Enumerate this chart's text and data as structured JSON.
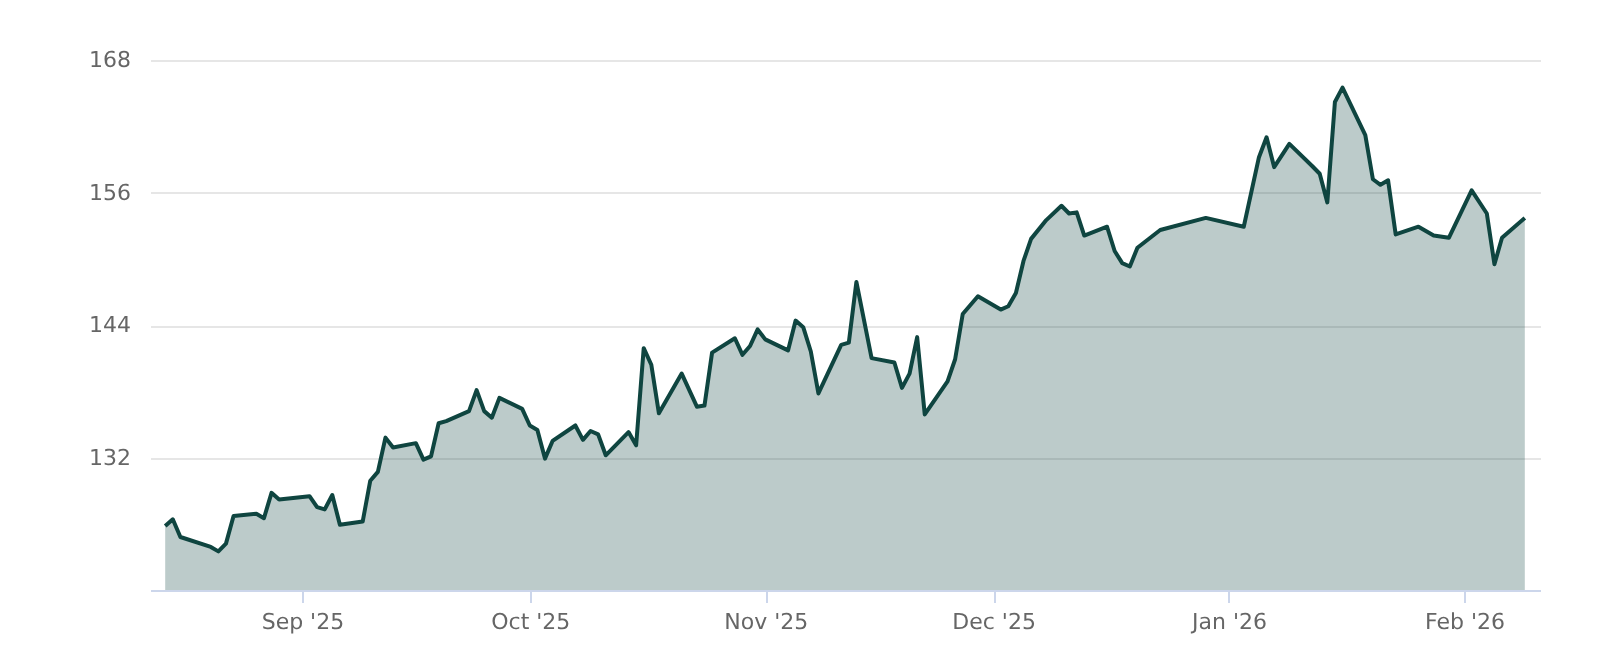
{
  "chart_data": {
    "type": "area",
    "x": [
      "2025-08-14",
      "2025-08-15",
      "2025-08-16",
      "2025-08-20",
      "2025-08-21",
      "2025-08-22",
      "2025-08-23",
      "2025-08-26",
      "2025-08-27",
      "2025-08-28",
      "2025-08-29",
      "2025-09-02",
      "2025-09-03",
      "2025-09-04",
      "2025-09-05",
      "2025-09-06",
      "2025-09-09",
      "2025-09-10",
      "2025-09-11",
      "2025-09-12",
      "2025-09-13",
      "2025-09-16",
      "2025-09-17",
      "2025-09-18",
      "2025-09-19",
      "2025-09-20",
      "2025-09-23",
      "2025-09-24",
      "2025-09-25",
      "2025-09-26",
      "2025-09-27",
      "2025-09-30",
      "2025-10-01",
      "2025-10-02",
      "2025-10-03",
      "2025-10-04",
      "2025-10-07",
      "2025-10-08",
      "2025-10-09",
      "2025-10-10",
      "2025-10-11",
      "2025-10-14",
      "2025-10-15",
      "2025-10-16",
      "2025-10-17",
      "2025-10-18",
      "2025-10-21",
      "2025-10-23",
      "2025-10-24",
      "2025-10-25",
      "2025-10-28",
      "2025-10-29",
      "2025-10-30",
      "2025-10-31",
      "2025-11-01",
      "2025-11-04",
      "2025-11-05",
      "2025-11-06",
      "2025-11-07",
      "2025-11-08",
      "2025-11-11",
      "2025-11-12",
      "2025-11-13",
      "2025-11-15",
      "2025-11-18",
      "2025-11-19",
      "2025-11-20",
      "2025-11-21",
      "2025-11-22",
      "2025-11-25",
      "2025-11-26",
      "2025-11-27",
      "2025-11-29",
      "2025-12-02",
      "2025-12-03",
      "2025-12-04",
      "2025-12-05",
      "2025-12-06",
      "2025-12-08",
      "2025-12-10",
      "2025-12-11",
      "2025-12-12",
      "2025-12-13",
      "2025-12-16",
      "2025-12-17",
      "2025-12-18",
      "2025-12-19",
      "2025-12-20",
      "2025-12-23",
      "2025-12-29",
      "2026-01-03",
      "2026-01-05",
      "2026-01-06",
      "2026-01-07",
      "2026-01-09",
      "2026-01-12",
      "2026-01-13",
      "2026-01-14",
      "2026-01-15",
      "2026-01-16",
      "2026-01-19",
      "2026-01-20",
      "2026-01-21",
      "2026-01-22",
      "2026-01-23",
      "2026-01-26",
      "2026-01-28",
      "2026-01-30",
      "2026-02-02",
      "2026-02-04",
      "2026-02-05",
      "2026-02-06",
      "2026-02-09"
    ],
    "series": [
      {
        "color": "#0f4540",
        "values": [
          125.8,
          126.4,
          124.8,
          123.9,
          123.5,
          124.2,
          126.7,
          126.9,
          126.5,
          128.8,
          128.2,
          128.5,
          127.5,
          127.3,
          128.6,
          125.9,
          126.2,
          129.9,
          130.7,
          133.8,
          132.9,
          133.3,
          131.8,
          132.1,
          135.1,
          135.3,
          136.2,
          138.1,
          136.2,
          135.6,
          137.4,
          136.4,
          134.9,
          134.5,
          131.9,
          133.5,
          134.9,
          133.6,
          134.4,
          134.1,
          132.2,
          134.3,
          133.1,
          141.9,
          140.4,
          136.0,
          139.6,
          136.6,
          136.7,
          141.5,
          142.8,
          141.3,
          142.1,
          143.6,
          142.7,
          141.7,
          144.4,
          143.8,
          141.6,
          137.8,
          142.2,
          142.4,
          147.9,
          141.0,
          140.6,
          138.3,
          139.6,
          142.9,
          135.9,
          138.9,
          140.9,
          145.0,
          146.6,
          145.4,
          145.7,
          146.9,
          149.8,
          151.8,
          153.5,
          154.8,
          154.1,
          154.2,
          152.1,
          152.9,
          150.7,
          149.6,
          149.3,
          151.0,
          152.6,
          153.7,
          152.9,
          159.2,
          161.0,
          158.3,
          160.4,
          158.4,
          157.7,
          155.1,
          164.2,
          165.5,
          161.2,
          157.2,
          156.7,
          157.1,
          152.2,
          152.9,
          152.1,
          151.9,
          156.2,
          154.1,
          149.5,
          151.9,
          153.7
        ]
      }
    ],
    "xlim": [
      "2025-08-12",
      "2026-02-11"
    ],
    "xticks": [
      {
        "value": "2025-09-01",
        "label": "Sep '25"
      },
      {
        "value": "2025-10-01",
        "label": "Oct '25"
      },
      {
        "value": "2025-11-01",
        "label": "Nov '25"
      },
      {
        "value": "2025-12-01",
        "label": "Dec '25"
      },
      {
        "value": "2026-01-01",
        "label": "Jan '26"
      },
      {
        "value": "2026-02-01",
        "label": "Feb '26"
      }
    ],
    "ylim": [
      120,
      168
    ],
    "yticks": [
      132,
      144,
      156,
      168
    ],
    "grid": "y"
  }
}
